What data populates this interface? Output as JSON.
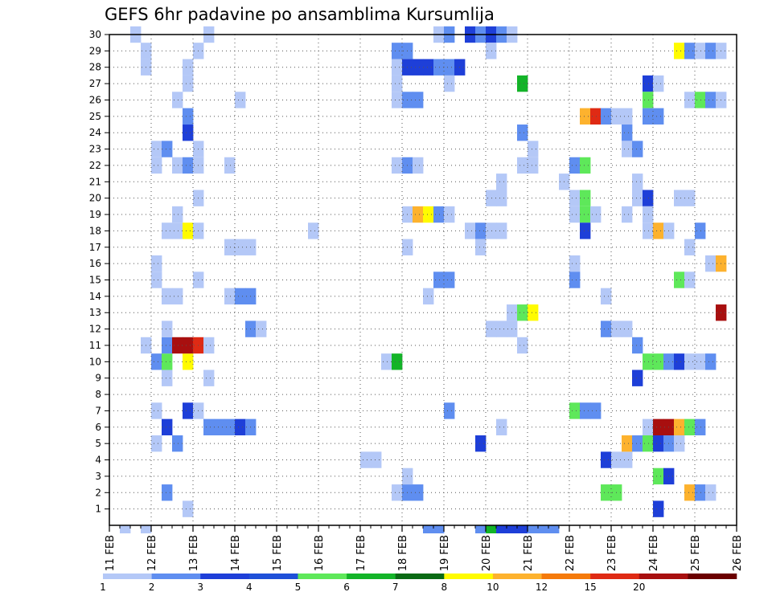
{
  "chart_data": {
    "type": "heatmap",
    "title": "GEFS 6hr padavine po ansamblima Kursumlija",
    "xlabel": "",
    "ylabel": "",
    "x_ticks": [
      "11 FEB",
      "12 FEB",
      "13 FEB",
      "14 FEB",
      "15 FEB",
      "16 FEB",
      "17 FEB",
      "18 FEB",
      "19 FEB",
      "20 FEB",
      "21 FEB",
      "22 FEB",
      "23 FEB",
      "24 FEB",
      "25 FEB",
      "26 FEB"
    ],
    "y_ticks": [
      "1",
      "2",
      "3",
      "4",
      "5",
      "6",
      "7",
      "8",
      "9",
      "10",
      "11",
      "12",
      "13",
      "14",
      "15",
      "16",
      "17",
      "18",
      "19",
      "20",
      "21",
      "22",
      "23",
      "24",
      "25",
      "26",
      "27",
      "28",
      "29",
      "30"
    ],
    "x_range": [
      "11 FEB 00z",
      "26 FEB 00z"
    ],
    "x_step_hours": 6,
    "y_range": [
      0,
      30
    ],
    "grid": "dotted",
    "colorbar": {
      "levels": [
        "1",
        "2",
        "3",
        "4",
        "5",
        "6",
        "7",
        "8",
        "10",
        "12",
        "15",
        "20"
      ],
      "colors": [
        "#b4c8f7",
        "#5f8ef0",
        "#1e3fd8",
        "#1f50d8",
        "#5ee85a",
        "#13b428",
        "#0a6a14",
        "#fffb00",
        "#fdb22e",
        "#f57a0a",
        "#df2a14",
        "#a80f0f",
        "#6b0000"
      ]
    },
    "cells": [
      [
        "2/11 12z",
        30,
        1
      ],
      [
        "2/11 06z",
        0,
        1
      ],
      [
        "2/11 18z",
        0,
        1
      ],
      [
        "2/12 18z",
        1,
        1
      ],
      [
        "2/12 06z",
        2,
        2
      ],
      [
        "2/12 00z",
        5,
        1
      ],
      [
        "2/12 12z",
        5,
        2
      ],
      [
        "2/12 06z",
        6,
        3
      ],
      [
        "2/12 00z",
        7,
        1
      ],
      [
        "2/12 06z",
        9,
        1
      ],
      [
        "2/12 00z",
        10,
        2
      ],
      [
        "2/12 06z",
        10,
        5
      ],
      [
        "2/12 18z",
        10,
        8
      ],
      [
        "2/11 18z",
        11,
        1
      ],
      [
        "2/12 06z",
        11,
        2
      ],
      [
        "2/12 12z",
        11,
        20
      ],
      [
        "2/12 18z",
        11,
        20
      ],
      [
        "2/13 00z",
        11,
        15
      ],
      [
        "2/13 06z",
        11,
        1
      ],
      [
        "2/12 06z",
        12,
        1
      ],
      [
        "2/12 06z",
        14,
        1
      ],
      [
        "2/12 12z",
        14,
        1
      ],
      [
        "2/12 00z",
        15,
        1
      ],
      [
        "2/13 00z",
        15,
        1
      ],
      [
        "2/12 00z",
        16,
        1
      ],
      [
        "2/12 06z",
        18,
        1
      ],
      [
        "2/12 12z",
        18,
        1
      ],
      [
        "2/12 18z",
        18,
        8
      ],
      [
        "2/13 00z",
        18,
        1
      ],
      [
        "2/12 12z",
        19,
        1
      ],
      [
        "2/13 00z",
        20,
        1
      ],
      [
        "2/12 00z",
        22,
        1
      ],
      [
        "2/12 12z",
        22,
        1
      ],
      [
        "2/12 18z",
        22,
        2
      ],
      [
        "2/13 00z",
        22,
        1
      ],
      [
        "2/12 00z",
        23,
        1
      ],
      [
        "2/12 06z",
        23,
        2
      ],
      [
        "2/13 00z",
        23,
        1
      ],
      [
        "2/12 18z",
        24,
        3
      ],
      [
        "2/12 18z",
        25,
        2
      ],
      [
        "2/12 12z",
        26,
        1
      ],
      [
        "2/12 18z",
        27,
        1
      ],
      [
        "2/11 18z",
        28,
        1
      ],
      [
        "2/12 18z",
        28,
        1
      ],
      [
        "2/11 18z",
        29,
        1
      ],
      [
        "2/13 00z",
        29,
        1
      ],
      [
        "2/13 06z",
        30,
        1
      ],
      [
        "2/12 18z",
        7,
        3
      ],
      [
        "2/13 00z",
        7,
        1
      ],
      [
        "2/13 06z",
        6,
        2
      ],
      [
        "2/13 12z",
        6,
        2
      ],
      [
        "2/13 18z",
        6,
        2
      ],
      [
        "2/14 00z",
        6,
        3
      ],
      [
        "2/14 06z",
        6,
        2
      ],
      [
        "2/13 06z",
        9,
        1
      ],
      [
        "2/14 06z",
        12,
        2
      ],
      [
        "2/14 12z",
        12,
        1
      ],
      [
        "2/13 18z",
        14,
        1
      ],
      [
        "2/14 00z",
        14,
        2
      ],
      [
        "2/14 06z",
        14,
        2
      ],
      [
        "2/13 18z",
        17,
        1
      ],
      [
        "2/14 00z",
        17,
        1
      ],
      [
        "2/14 06z",
        17,
        1
      ],
      [
        "2/13 18z",
        22,
        1
      ],
      [
        "2/14 00z",
        26,
        1
      ],
      [
        "2/15 18z",
        18,
        1
      ],
      [
        "2/17 00z",
        4,
        1
      ],
      [
        "2/17 06z",
        4,
        1
      ],
      [
        "2/17 12z",
        10,
        1
      ],
      [
        "2/17 18z",
        10,
        6
      ],
      [
        "2/17 18z",
        2,
        1
      ],
      [
        "2/18 00z",
        2,
        2
      ],
      [
        "2/18 06z",
        2,
        2
      ],
      [
        "2/18 00z",
        3,
        1
      ],
      [
        "2/18 00z",
        17,
        1
      ],
      [
        "2/18 12z",
        0,
        2
      ],
      [
        "2/18 18z",
        0,
        2
      ],
      [
        "2/17 18z",
        22,
        1
      ],
      [
        "2/18 00z",
        22,
        2
      ],
      [
        "2/18 06z",
        22,
        1
      ],
      [
        "2/17 18z",
        26,
        1
      ],
      [
        "2/18 00z",
        26,
        2
      ],
      [
        "2/18 06z",
        26,
        2
      ],
      [
        "2/17 18z",
        27,
        1
      ],
      [
        "2/17 18z",
        28,
        1
      ],
      [
        "2/18 00z",
        28,
        3
      ],
      [
        "2/18 06z",
        28,
        3
      ],
      [
        "2/18 12z",
        28,
        3
      ],
      [
        "2/18 18z",
        28,
        2
      ],
      [
        "2/19 00z",
        28,
        2
      ],
      [
        "2/19 06z",
        28,
        3
      ],
      [
        "2/17 18z",
        29,
        2
      ],
      [
        "2/18 00z",
        29,
        2
      ],
      [
        "2/18 00z",
        19,
        1
      ],
      [
        "2/18 06z",
        19,
        10
      ],
      [
        "2/18 12z",
        19,
        8
      ],
      [
        "2/18 18z",
        19,
        2
      ],
      [
        "2/19 00z",
        19,
        1
      ],
      [
        "2/18 12z",
        14,
        1
      ],
      [
        "2/18 18z",
        15,
        2
      ],
      [
        "2/19 00z",
        15,
        2
      ],
      [
        "2/19 00z",
        7,
        2
      ],
      [
        "2/18 18z",
        30,
        1
      ],
      [
        "2/19 00z",
        30,
        2
      ],
      [
        "2/19 12z",
        30,
        3
      ],
      [
        "2/19 18z",
        30,
        2
      ],
      [
        "2/20 00z",
        30,
        3
      ],
      [
        "2/20 06z",
        30,
        2
      ],
      [
        "2/20 12z",
        30,
        1
      ],
      [
        "2/19 00z",
        27,
        1
      ],
      [
        "2/19 12z",
        18,
        1
      ],
      [
        "2/19 18z",
        18,
        2
      ],
      [
        "2/20 00z",
        18,
        1
      ],
      [
        "2/20 06z",
        18,
        1
      ],
      [
        "2/19 18z",
        17,
        1
      ],
      [
        "2/19 18z",
        5,
        3
      ],
      [
        "2/19 18z",
        0,
        2
      ],
      [
        "2/20 00z",
        0,
        6
      ],
      [
        "2/20 06z",
        0,
        3
      ],
      [
        "2/20 12z",
        0,
        3
      ],
      [
        "2/20 18z",
        0,
        3
      ],
      [
        "2/21 00z",
        0,
        2
      ],
      [
        "2/21 06z",
        0,
        2
      ],
      [
        "2/21 12z",
        0,
        2
      ],
      [
        "2/20 00z",
        12,
        1
      ],
      [
        "2/20 06z",
        12,
        1
      ],
      [
        "2/20 12z",
        12,
        1
      ],
      [
        "2/20 12z",
        13,
        1
      ],
      [
        "2/20 18z",
        13,
        5
      ],
      [
        "2/21 00z",
        13,
        8
      ],
      [
        "2/20 06z",
        6,
        1
      ],
      [
        "2/20 18z",
        11,
        1
      ],
      [
        "2/20 00z",
        20,
        1
      ],
      [
        "2/20 06z",
        20,
        1
      ],
      [
        "2/20 06z",
        21,
        1
      ],
      [
        "2/20 18z",
        22,
        1
      ],
      [
        "2/21 00z",
        22,
        1
      ],
      [
        "2/20 18z",
        24,
        2
      ],
      [
        "2/21 00z",
        23,
        1
      ],
      [
        "2/20 18z",
        27,
        6
      ],
      [
        "2/20 00z",
        29,
        1
      ],
      [
        "2/21 18z",
        21,
        1
      ],
      [
        "2/22 00z",
        22,
        2
      ],
      [
        "2/22 06z",
        22,
        5
      ],
      [
        "2/22 00z",
        20,
        1
      ],
      [
        "2/22 06z",
        20,
        5
      ],
      [
        "2/22 00z",
        19,
        1
      ],
      [
        "2/22 06z",
        19,
        5
      ],
      [
        "2/22 06z",
        18,
        3
      ],
      [
        "2/22 12z",
        19,
        1
      ],
      [
        "2/22 00z",
        16,
        1
      ],
      [
        "2/22 00z",
        15,
        2
      ],
      [
        "2/22 00z",
        7,
        5
      ],
      [
        "2/22 06z",
        7,
        2
      ],
      [
        "2/22 12z",
        7,
        2
      ],
      [
        "2/22 06z",
        25,
        10
      ],
      [
        "2/22 12z",
        25,
        15
      ],
      [
        "2/22 18z",
        25,
        2
      ],
      [
        "2/23 00z",
        25,
        1
      ],
      [
        "2/23 06z",
        25,
        1
      ],
      [
        "2/22 18z",
        14,
        1
      ],
      [
        "2/22 18z",
        12,
        2
      ],
      [
        "2/23 00z",
        12,
        1
      ],
      [
        "2/23 06z",
        12,
        1
      ],
      [
        "2/22 18z",
        4,
        3
      ],
      [
        "2/23 00z",
        4,
        1
      ],
      [
        "2/23 06z",
        4,
        1
      ],
      [
        "2/22 18z",
        2,
        5
      ],
      [
        "2/23 00z",
        2,
        5
      ],
      [
        "2/23 06z",
        24,
        2
      ],
      [
        "2/23 06z",
        23,
        1
      ],
      [
        "2/23 12z",
        23,
        2
      ],
      [
        "2/23 12z",
        21,
        0
      ],
      [
        "2/23 12z",
        20,
        1
      ],
      [
        "2/23 18z",
        20,
        3
      ],
      [
        "2/23 18z",
        27,
        3
      ],
      [
        "2/24 00z",
        27,
        1
      ],
      [
        "2/23 06z",
        19,
        1
      ],
      [
        "2/23 18z",
        19,
        1
      ],
      [
        "2/23 18z",
        18,
        1
      ],
      [
        "2/24 00z",
        18,
        10
      ],
      [
        "2/24 06z",
        18,
        1
      ],
      [
        "2/23 12z",
        11,
        2
      ],
      [
        "2/23 18z",
        10,
        5
      ],
      [
        "2/24 00z",
        10,
        5
      ],
      [
        "2/23 12z",
        9,
        3
      ],
      [
        "2/23 06z",
        5,
        10
      ],
      [
        "2/23 12z",
        5,
        2
      ],
      [
        "2/23 18z",
        5,
        5
      ],
      [
        "2/24 00z",
        5,
        3
      ],
      [
        "2/24 06z",
        5,
        2
      ],
      [
        "2/24 12z",
        5,
        1
      ],
      [
        "2/23 18z",
        6,
        1
      ],
      [
        "2/24 00z",
        6,
        20
      ],
      [
        "2/24 06z",
        6,
        20
      ],
      [
        "2/24 12z",
        6,
        10
      ],
      [
        "2/24 18z",
        6,
        5
      ],
      [
        "2/25 00z",
        6,
        2
      ],
      [
        "2/23 18z",
        26,
        5
      ],
      [
        "2/23 18z",
        25,
        2
      ],
      [
        "2/24 00z",
        25,
        2
      ],
      [
        "2/24 00z",
        3,
        5
      ],
      [
        "2/24 06z",
        3,
        3
      ],
      [
        "2/24 00z",
        1,
        3
      ],
      [
        "2/24 12z",
        29,
        8
      ],
      [
        "2/24 18z",
        29,
        2
      ],
      [
        "2/25 00z",
        29,
        1
      ],
      [
        "2/25 06z",
        29,
        2
      ],
      [
        "2/25 12z",
        29,
        1
      ],
      [
        "2/24 18z",
        26,
        1
      ],
      [
        "2/25 00z",
        26,
        5
      ],
      [
        "2/25 06z",
        26,
        2
      ],
      [
        "2/25 12z",
        26,
        1
      ],
      [
        "2/24 12z",
        20,
        1
      ],
      [
        "2/24 18z",
        20,
        1
      ],
      [
        "2/25 00z",
        18,
        2
      ],
      [
        "2/24 18z",
        17,
        1
      ],
      [
        "2/25 06z",
        16,
        1
      ],
      [
        "2/25 12z",
        16,
        10
      ],
      [
        "2/24 12z",
        15,
        5
      ],
      [
        "2/24 18z",
        15,
        1
      ],
      [
        "2/25 12z",
        13,
        20
      ],
      [
        "2/24 06z",
        10,
        2
      ],
      [
        "2/24 12z",
        10,
        3
      ],
      [
        "2/24 18z",
        10,
        1
      ],
      [
        "2/25 00z",
        10,
        1
      ],
      [
        "2/25 06z",
        10,
        2
      ],
      [
        "2/24 18z",
        2,
        10
      ],
      [
        "2/25 00z",
        2,
        2
      ],
      [
        "2/25 06z",
        2,
        1
      ]
    ]
  },
  "ui": {
    "title": "GEFS 6hr padavine po ansamblima Kursumlija"
  }
}
